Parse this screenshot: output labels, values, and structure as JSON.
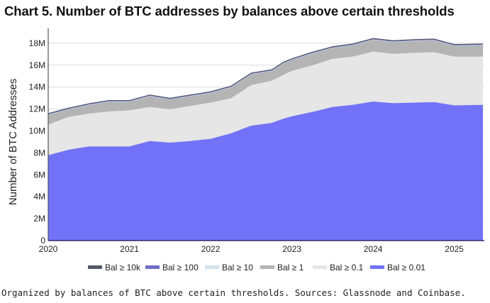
{
  "chart_data": {
    "type": "area",
    "stacked": true,
    "title": "Chart 5. Number of BTC addresses by balances above certain thresholds",
    "xlabel": "",
    "ylabel": "Number of BTC Addresses",
    "xlim": [
      2020,
      2025.37
    ],
    "ylim": [
      0,
      19.5
    ],
    "y_unit": "M",
    "x_ticks": [
      "2020",
      "2021",
      "2022",
      "2023",
      "2024",
      "2025"
    ],
    "y_ticks": [
      "0",
      "2M",
      "4M",
      "6M",
      "8M",
      "10M",
      "12M",
      "14M",
      "16M",
      "18M"
    ],
    "grid": "horizontal",
    "legend_position": "bottom",
    "x": [
      2020.0,
      2020.25,
      2020.5,
      2020.75,
      2021.0,
      2021.25,
      2021.5,
      2021.75,
      2022.0,
      2022.25,
      2022.5,
      2022.75,
      2022.9,
      2023.0,
      2023.25,
      2023.5,
      2023.75,
      2024.0,
      2024.25,
      2024.5,
      2024.75,
      2025.0,
      2025.35
    ],
    "series": [
      {
        "name": "Bal ≥ 0.01",
        "color": "#7272f8",
        "values": [
          7.8,
          8.3,
          8.6,
          8.6,
          8.6,
          9.1,
          8.95,
          9.1,
          9.3,
          9.8,
          10.5,
          10.75,
          11.15,
          11.35,
          11.75,
          12.2,
          12.4,
          12.7,
          12.55,
          12.6,
          12.65,
          12.35,
          12.4
        ]
      },
      {
        "name": "Bal ≥ 0.1",
        "color": "#e6e6e6",
        "values": [
          2.8,
          3.0,
          3.0,
          3.2,
          3.3,
          3.1,
          3.05,
          3.2,
          3.3,
          3.2,
          3.7,
          3.85,
          4.0,
          4.15,
          4.25,
          4.4,
          4.4,
          4.55,
          4.5,
          4.55,
          4.55,
          4.45,
          4.4
        ]
      },
      {
        "name": "Bal ≥ 1",
        "color": "#b4b4b4",
        "values": [
          0.88,
          0.68,
          0.78,
          0.88,
          0.78,
          0.98,
          0.88,
          0.88,
          0.88,
          0.98,
          0.98,
          0.88,
          1.03,
          0.98,
          1.08,
          0.98,
          1.03,
          1.08,
          1.08,
          1.08,
          1.08,
          0.98,
          1.03
        ]
      },
      {
        "name": "Bal ≥ 10",
        "color": "#cfe3ea",
        "values": [
          0.04,
          0.04,
          0.04,
          0.04,
          0.04,
          0.04,
          0.04,
          0.04,
          0.04,
          0.04,
          0.04,
          0.04,
          0.04,
          0.04,
          0.04,
          0.04,
          0.04,
          0.04,
          0.04,
          0.04,
          0.04,
          0.04,
          0.04
        ]
      },
      {
        "name": "Bal ≥ 100",
        "color": "#6e6ec8",
        "values": [
          0.04,
          0.04,
          0.04,
          0.04,
          0.04,
          0.04,
          0.04,
          0.04,
          0.04,
          0.04,
          0.04,
          0.04,
          0.04,
          0.04,
          0.04,
          0.04,
          0.04,
          0.04,
          0.04,
          0.04,
          0.04,
          0.04,
          0.04
        ]
      },
      {
        "name": "Bal ≥ 10k",
        "color": "#555a66",
        "values": [
          0.04,
          0.04,
          0.04,
          0.04,
          0.04,
          0.04,
          0.04,
          0.04,
          0.04,
          0.04,
          0.04,
          0.04,
          0.04,
          0.04,
          0.04,
          0.04,
          0.04,
          0.04,
          0.04,
          0.04,
          0.04,
          0.04,
          0.04
        ]
      }
    ],
    "legend_order": [
      "Bal ≥ 10k",
      "Bal ≥ 100",
      "Bal ≥ 10",
      "Bal ≥ 1",
      "Bal ≥ 0.1",
      "Bal ≥ 0.01"
    ]
  },
  "caption": "Organized by balances of BTC above certain thresholds. Sources: Glassnode and Coinbase."
}
